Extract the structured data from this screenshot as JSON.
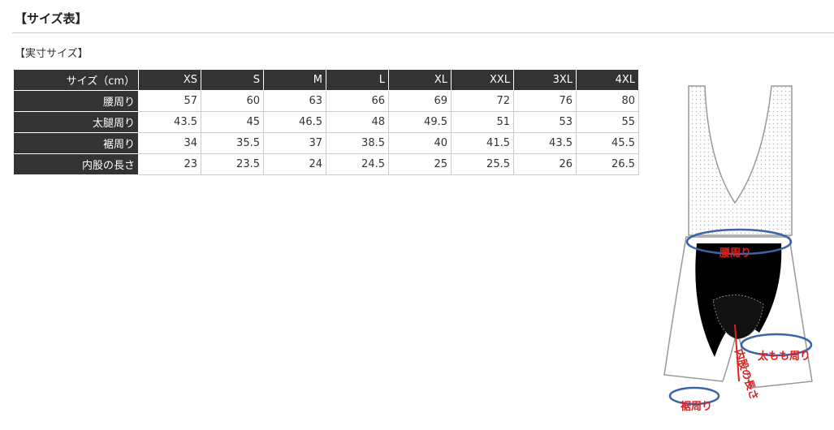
{
  "header": {
    "title": "【サイズ表】"
  },
  "subtitle": "【実寸サイズ】",
  "table": {
    "header": [
      "サイズ（cm）",
      "XS",
      "S",
      "M",
      "L",
      "XL",
      "XXL",
      "3XL",
      "4XL"
    ],
    "rows": [
      {
        "label": "腰周り",
        "values": [
          57,
          60,
          63,
          66,
          69,
          72,
          76,
          80
        ]
      },
      {
        "label": "太腿周り",
        "values": [
          43.5,
          45,
          46.5,
          48,
          49.5,
          51,
          53,
          55
        ]
      },
      {
        "label": "裾周り",
        "values": [
          34,
          35.5,
          37,
          38.5,
          40,
          41.5,
          43.5,
          45.5
        ]
      },
      {
        "label": "内股の長さ",
        "values": [
          23,
          23.5,
          24,
          24.5,
          25,
          25.5,
          26,
          26.5
        ]
      }
    ]
  },
  "figure": {
    "labels": [
      "腰周り",
      "太もも周り",
      "内股の長さ",
      "裾周り"
    ]
  }
}
